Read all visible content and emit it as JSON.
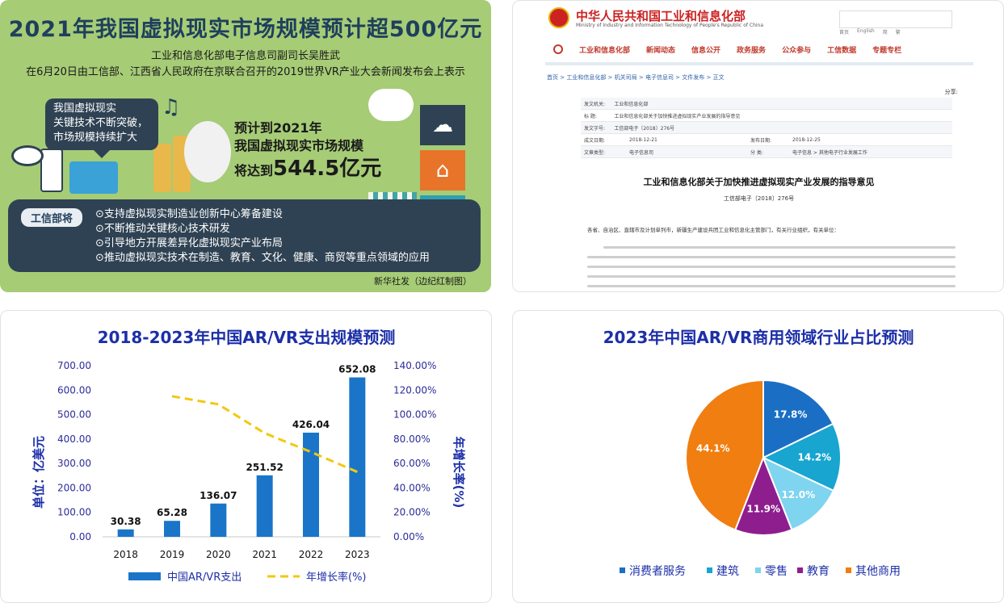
{
  "infographic": {
    "title": "2021年我国虚拟现实市场规模预计超500亿元",
    "sub1": "工业和信息化部电子信息司副司长吴胜武",
    "sub2": "在6月20日由工信部、江西省人民政府在京联合召开的2019世界VR产业大会新闻发布会上表示",
    "bubble": [
      "我国虚拟现实",
      "关键技术不断突破，",
      "市场规模持续扩大"
    ],
    "forecast_line1": "预计到2021年",
    "forecast_line2": "我国虚拟现实市场规模",
    "forecast_prefix": "将达到",
    "forecast_value": "544.5亿元",
    "box_label": "工信部将",
    "measures": [
      "⊙支持虚拟现实制造业创新中心筹备建设",
      "⊙不断推动关键核心技术研发",
      "⊙引导地方开展差异化虚拟现实产业布局",
      "⊙推动虚拟现实技术在制造、教育、文化、健康、商贸等重点领域的应用"
    ],
    "credit": "新华社发（边纪红制图）",
    "tile_colors": [
      "#2f4253",
      "#e8742a",
      "#2f9fb2"
    ]
  },
  "document": {
    "ministry_cn": "中华人民共和国工业和信息化部",
    "ministry_en": "Ministry of Industry and Information Technology of People's Republic of China",
    "toplinks": [
      "首页",
      "English",
      "简",
      "繁"
    ],
    "nav": [
      "工业和信息化部",
      "新闻动态",
      "信息公开",
      "政务服务",
      "公众参与",
      "工信数据",
      "专题专栏"
    ],
    "breadcrumb": "首页 > 工业和信息化部 > 机关司局 > 电子信息司 > 文件发布 > 正文",
    "share": "分享:",
    "meta": [
      [
        "发文机关:",
        "工业和信息化部",
        "",
        ""
      ],
      [
        "标 题:",
        "工业和信息化部关于加快推进虚拟现实产业发展的指导意见",
        "",
        ""
      ],
      [
        "发文字号:",
        "工信部电子〔2018〕276号",
        "",
        ""
      ],
      [
        "成文日期:",
        "2018-12-21",
        "发布日期:",
        "2018-12-25"
      ],
      [
        "文章类型:",
        "电子信息司",
        "分 类:",
        "电子信息 > 其他电子行业发展工作"
      ]
    ],
    "doc_title": "工业和信息化部关于加快推进虚拟现实产业发展的指导意见",
    "doc_no": "工信部电子〔2018〕276号",
    "addressee": "各省、自治区、直辖市及计划单列市，新疆生产建设兵团工业和信息化主管部门，有关行业组织，有关单位："
  },
  "chart_data": [
    {
      "type": "bar",
      "title": "2018-2023年中国AR/VR支出规模预测",
      "categories": [
        "2018",
        "2019",
        "2020",
        "2021",
        "2022",
        "2023"
      ],
      "series": [
        {
          "name": "中国AR/VR支出",
          "values": [
            30.38,
            65.28,
            136.07,
            251.52,
            426.04,
            652.08
          ],
          "color": "#1a75c9"
        },
        {
          "name": "年增长率(%)",
          "type": "line",
          "values": [
            null,
            115,
            108.4,
            84.8,
            69.4,
            53.1
          ],
          "color": "#f2c811"
        }
      ],
      "ylabel": "单位：亿美元",
      "y2label": "年增长率(%)",
      "ylim": [
        0,
        700
      ],
      "y2lim": [
        0,
        140
      ],
      "yticks": [
        "0.00",
        "100.00",
        "200.00",
        "300.00",
        "400.00",
        "500.00",
        "600.00",
        "700.00"
      ],
      "y2ticks": [
        "0.00%",
        "20.00%",
        "40.00%",
        "60.00%",
        "80.00%",
        "100.00%",
        "120.00%",
        "140.00%"
      ],
      "data_labels": [
        "30.38",
        "65.28",
        "136.07",
        "251.52",
        "426.04",
        "652.08"
      ],
      "grid": false,
      "legend": "bottom"
    },
    {
      "type": "pie",
      "title": "2023年中国AR/VR商用领域行业占比预测",
      "slices": [
        {
          "label": "消费者服务",
          "value": 17.8,
          "text": "17.8%",
          "color": "#1a6fc4"
        },
        {
          "label": "建筑",
          "value": 14.2,
          "text": "14.2%",
          "color": "#18a5cf"
        },
        {
          "label": "零售",
          "value": 12.0,
          "text": "12.0%",
          "color": "#7fd4ef"
        },
        {
          "label": "教育",
          "value": 11.9,
          "text": "11.9%",
          "color": "#8e1e8e"
        },
        {
          "label": "其他商用",
          "value": 44.1,
          "text": "44.1%",
          "color": "#f07e10"
        }
      ],
      "legend": "bottom"
    }
  ]
}
